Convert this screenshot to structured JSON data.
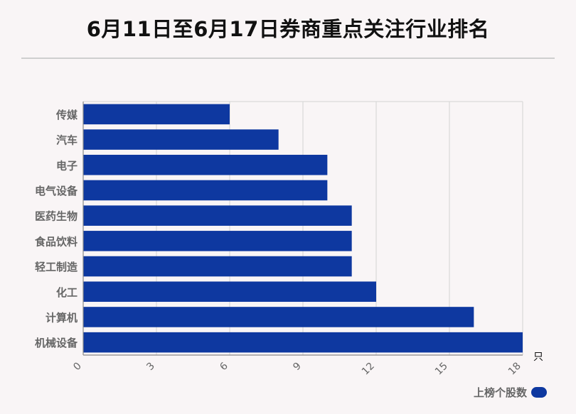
{
  "title": "6月11日至6月17日券商重点关注行业排名",
  "colors": {
    "bar": "#0e38a0",
    "grid": "#d3d3d3",
    "axis": "#666666"
  },
  "chart_data": {
    "type": "bar",
    "orientation": "horizontal",
    "title": "6月11日至6月17日券商重点关注行业排名",
    "categories": [
      "传媒",
      "汽车",
      "电子",
      "电气设备",
      "医药生物",
      "食品饮料",
      "轻工制造",
      "化工",
      "计算机",
      "机械设备"
    ],
    "series": [
      {
        "name": "上榜个股数",
        "values": [
          6,
          8,
          10,
          10,
          11,
          11,
          11,
          12,
          16,
          18
        ]
      }
    ],
    "xlim": [
      0,
      18
    ],
    "xticks": [
      "0",
      "3",
      "6",
      "9",
      "12",
      "15",
      "18"
    ],
    "xunit": "只",
    "grid": true,
    "legend_position": "bottom-right"
  },
  "legend": {
    "label": "上榜个股数"
  }
}
